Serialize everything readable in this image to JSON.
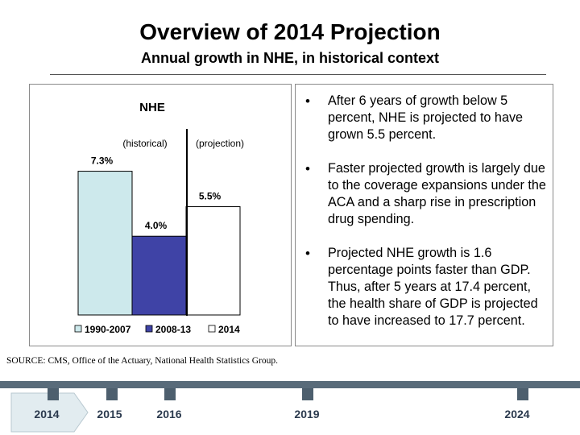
{
  "header": {
    "title": "Overview of 2014 Projection",
    "subtitle": "Annual growth in NHE, in historical context"
  },
  "chart_data": {
    "type": "bar",
    "title": "NHE",
    "categories": [
      "1990-2007",
      "2008-13",
      "2014"
    ],
    "values": [
      7.3,
      4.0,
      5.5
    ],
    "value_labels": [
      "7.3%",
      "4.0%",
      "5.5%"
    ],
    "colors": [
      "#cde9ec",
      "#3f43a6",
      "#ffffff"
    ],
    "annotations": [
      "(historical)",
      "(projection)"
    ],
    "ylim": [
      0,
      9
    ],
    "xlabel": "",
    "ylabel": "",
    "legend": "bottom",
    "grid": false
  },
  "bullets": [
    {
      "symbol": "•",
      "text": "After 6 years of growth below 5 percent, NHE is projected to have grown 5.5 percent."
    },
    {
      "symbol": "•",
      "text": "Faster projected growth is largely due to the coverage expansions under the ACA and a sharp rise in prescription drug spending."
    },
    {
      "symbol": "•",
      "text": "Projected NHE growth is 1.6 percentage points faster than GDP. Thus, after 5 years at 17.4 percent, the health share of GDP is projected to have increased to 17.7 percent."
    }
  ],
  "source": "SOURCE: CMS, Office of the Actuary, National Health Statistics Group.",
  "timeline": {
    "years": [
      "2014",
      "2015",
      "2016",
      "2019",
      "2024"
    ],
    "active_index": 0,
    "colors": {
      "bar": "#596b7a",
      "marker": "#4d5f6e",
      "label": "#2b3a4e",
      "active_fill": "#e2ecf0"
    }
  }
}
